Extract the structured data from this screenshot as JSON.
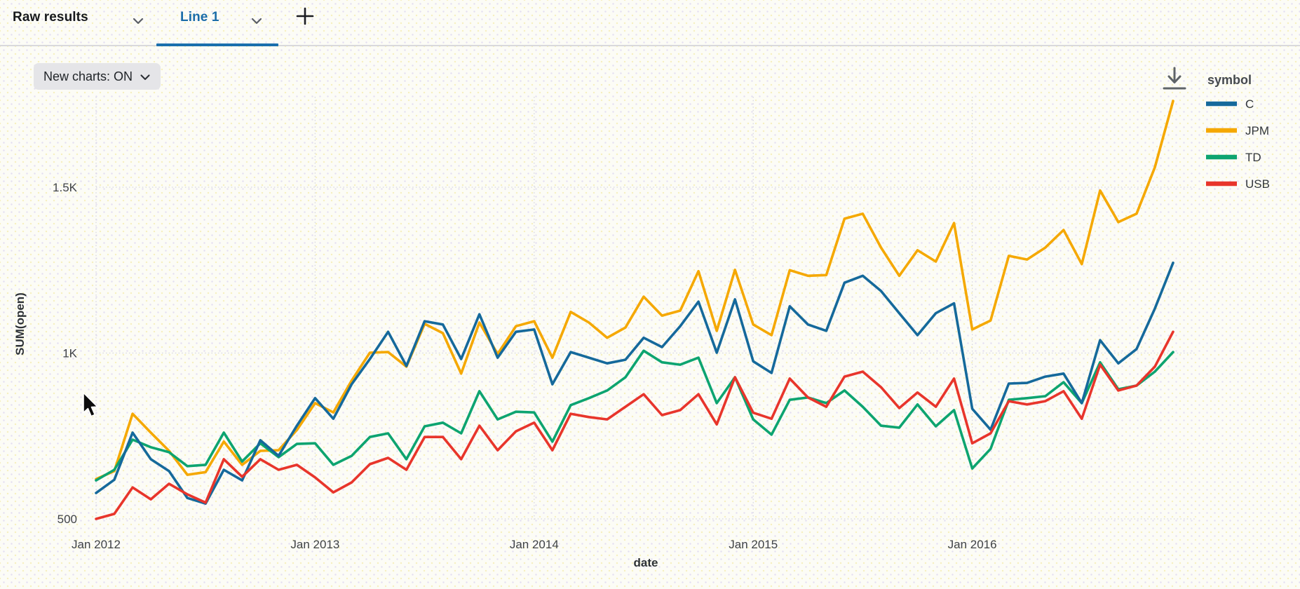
{
  "topbar": {
    "tabs": [
      {
        "label": "Raw results",
        "active": false
      },
      {
        "label": "Line 1",
        "active": true
      }
    ],
    "add_tab_icon": "plus-icon",
    "tab_dropdown_icon": "chevron-down-icon"
  },
  "toolbar": {
    "new_charts_label": "New charts: ON",
    "dropdown_icon": "chevron-down-icon"
  },
  "icons": {
    "download": "download-icon",
    "cursor": "mouse-pointer-icon"
  },
  "ui_colors": {
    "active_tab_blue": "#1a6fad",
    "chip_bg": "#e5e5e8",
    "grid": "#d6d6e0",
    "icon_gray": "#5f6468"
  },
  "chart_data": {
    "type": "line",
    "title": "",
    "xlabel": "date",
    "ylabel": "SUM(open)",
    "legend_title": "symbol",
    "legend_position": "top-right",
    "grid": true,
    "x_unit": "month",
    "x_range": [
      "Jan 2012",
      "Dec 2016"
    ],
    "ylim": [
      440,
      1810
    ],
    "y_ticks": [
      {
        "label": "500",
        "value": 500
      },
      {
        "label": "1K",
        "value": 1000
      },
      {
        "label": "1.5K",
        "value": 1500
      }
    ],
    "x_ticks": [
      {
        "label": "Jan 2012",
        "month_index": 0
      },
      {
        "label": "Jan 2013",
        "month_index": 12
      },
      {
        "label": "Jan 2014",
        "month_index": 24
      },
      {
        "label": "Jan 2015",
        "month_index": 36
      },
      {
        "label": "Jan 2016",
        "month_index": 48
      }
    ],
    "series": [
      {
        "name": "C",
        "color": "#15699b",
        "values": [
          578,
          618,
          760,
          680,
          644,
          563,
          546,
          648,
          616,
          737,
          690,
          781,
          864,
          802,
          906,
          982,
          1064,
          961,
          1096,
          1086,
          982,
          1117,
          986,
          1064,
          1071,
          906,
          1003,
          986,
          969,
          980,
          1046,
          1018,
          1081,
          1155,
          1001,
          1162,
          975,
          940,
          1141,
          1086,
          1067,
          1212,
          1233,
          1187,
          1120,
          1054,
          1120,
          1150,
          832,
          769,
          908,
          910,
          929,
          938,
          849,
          1039,
          969,
          1012,
          1134,
          1272
        ]
      },
      {
        "name": "JPM",
        "color": "#f5a800",
        "values": [
          620,
          644,
          817,
          760,
          705,
          633,
          641,
          733,
          663,
          705,
          707,
          768,
          849,
          821,
          917,
          1001,
          1003,
          959,
          1088,
          1060,
          938,
          1092,
          997,
          1081,
          1096,
          986,
          1124,
          1092,
          1046,
          1077,
          1170,
          1113,
          1128,
          1247,
          1067,
          1251,
          1086,
          1054,
          1250,
          1233,
          1235,
          1405,
          1420,
          1318,
          1233,
          1310,
          1276,
          1392,
          1071,
          1098,
          1293,
          1282,
          1318,
          1371,
          1268,
          1490,
          1395,
          1420,
          1560,
          1760
        ]
      },
      {
        "name": "TD",
        "color": "#0da470",
        "values": [
          616,
          648,
          739,
          716,
          701,
          659,
          663,
          760,
          673,
          728,
          686,
          726,
          728,
          663,
          690,
          747,
          758,
          680,
          779,
          790,
          758,
          885,
          800,
          823,
          821,
          733,
          843,
          864,
          887,
          927,
          1007,
          972,
          965,
          986,
          849,
          927,
          800,
          754,
          859,
          866,
          849,
          887,
          838,
          781,
          775,
          845,
          779,
          828,
          652,
          711,
          859,
          864,
          870,
          912,
          849,
          972,
          891,
          902,
          944,
          1003
        ]
      },
      {
        "name": "USB",
        "color": "#e8352b",
        "values": [
          500,
          515,
          595,
          559,
          606,
          574,
          549,
          680,
          627,
          680,
          648,
          663,
          625,
          580,
          610,
          665,
          684,
          648,
          747,
          747,
          680,
          781,
          707,
          764,
          790,
          707,
          817,
          807,
          800,
          838,
          876,
          813,
          828,
          876,
          785,
          927,
          820,
          802,
          923,
          866,
          838,
          929,
          944,
          897,
          834,
          881,
          838,
          923,
          728,
          758,
          855,
          845,
          855,
          885,
          802,
          965,
          887,
          902,
          959,
          1064
        ]
      }
    ]
  }
}
